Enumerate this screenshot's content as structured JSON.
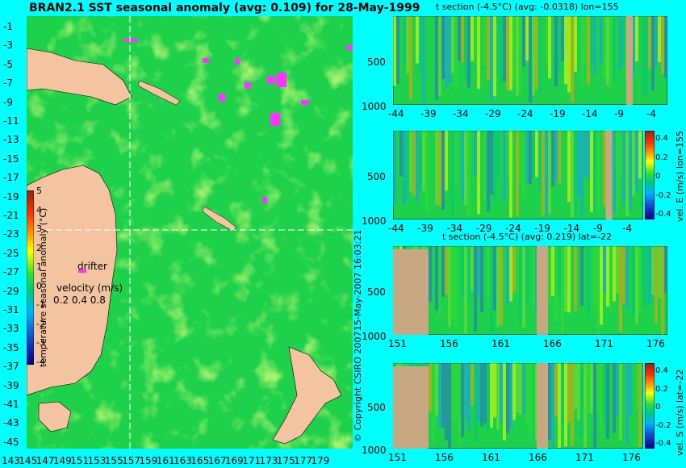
{
  "map": {
    "title": "BRAN2.1 SST seasonal anomaly (avg: 0.109) for 28-May-1999",
    "lat_ticks": [
      "-1",
      "-3",
      "-5",
      "-7",
      "-9",
      "-11",
      "-13",
      "-15",
      "-17",
      "-19",
      "-21",
      "-23",
      "-25",
      "-27",
      "-29",
      "-31",
      "-33",
      "-35",
      "-37",
      "-39",
      "-41",
      "-43",
      "-45"
    ],
    "lon_ticks": [
      "143",
      "145",
      "147",
      "149",
      "151",
      "153",
      "155",
      "157",
      "159",
      "161",
      "163",
      "165",
      "167",
      "169",
      "171",
      "173",
      "175",
      "177",
      "179"
    ],
    "colorbar_label": "temperature seasonal anomaly (°C)",
    "colorbar_ticks": [
      "5",
      "4",
      "3",
      "2",
      "1",
      "0",
      "-1",
      "-2",
      "-3",
      "-4"
    ],
    "drifter_label": "drifter",
    "velocity_label": "velocity (m/s)",
    "velocity_scale": "0.2 0.4 0.8",
    "section_lon": 155,
    "section_lat": -22
  },
  "copyright": "© Copyright CSIRO 2007",
  "timestamp": "15-May-2007 16:03:21",
  "panels": [
    {
      "id": "t-section-lon",
      "title": "t section (-4.5°C) (avg: -0.0318) lon=155",
      "x_ticks": [
        "-44",
        "-39",
        "-34",
        "-29",
        "-24",
        "-19",
        "-14",
        "-9",
        "-4"
      ],
      "y_ticks": [
        "500",
        "1000"
      ],
      "side_label": ""
    },
    {
      "id": "vel-e-lon",
      "title": "",
      "x_ticks": [
        "-44",
        "-39",
        "-34",
        "-29",
        "-24",
        "-19",
        "-14",
        "-9",
        "-4"
      ],
      "y_ticks": [
        "500",
        "1000"
      ],
      "side_label": "vel. E (m/s) lon=155",
      "cbar_ticks": [
        "0.4",
        "0.2",
        "0",
        "-0.2",
        "-0.4"
      ]
    },
    {
      "id": "t-section-lat",
      "title": "t section (-4.5°C) (avg: 0.219) lat=-22",
      "x_ticks": [
        "151",
        "156",
        "161",
        "166",
        "171",
        "176"
      ],
      "y_ticks": [
        "500",
        "1000"
      ],
      "side_label": ""
    },
    {
      "id": "vel-s-lat",
      "title": "",
      "x_ticks": [
        "151",
        "156",
        "161",
        "166",
        "171",
        "176"
      ],
      "y_ticks": [
        "500",
        "1000"
      ],
      "side_label": "vel. S (m/s) lat=-22",
      "cbar_ticks": [
        "0.4",
        "0.2",
        "0",
        "-0.2",
        "-0.4"
      ]
    }
  ],
  "chart_data": [
    {
      "type": "heatmap",
      "title": "BRAN2.1 SST seasonal anomaly (avg: 0.109) for 28-May-1999",
      "xlabel": "",
      "ylabel": "",
      "xlim": [
        143,
        180
      ],
      "ylim": [
        -45,
        0
      ],
      "zlim": [
        -4,
        5
      ]
    },
    {
      "type": "heatmap",
      "title": "t section (-4.5°C) (avg: -0.0318) lon=155",
      "xlim": [
        -45,
        0
      ],
      "ylim": [
        1000,
        0
      ]
    },
    {
      "type": "heatmap",
      "title": "",
      "xlim": [
        -45,
        0
      ],
      "ylim": [
        1000,
        0
      ],
      "zlim": [
        -0.4,
        0.4
      ]
    },
    {
      "type": "heatmap",
      "title": "t section (-4.5°C) (avg: 0.219) lat=-22",
      "xlim": [
        150,
        180
      ],
      "ylim": [
        1000,
        0
      ]
    },
    {
      "type": "heatmap",
      "title": "",
      "xlim": [
        150,
        180
      ],
      "ylim": [
        1000,
        0
      ],
      "zlim": [
        -0.4,
        0.4
      ]
    }
  ]
}
